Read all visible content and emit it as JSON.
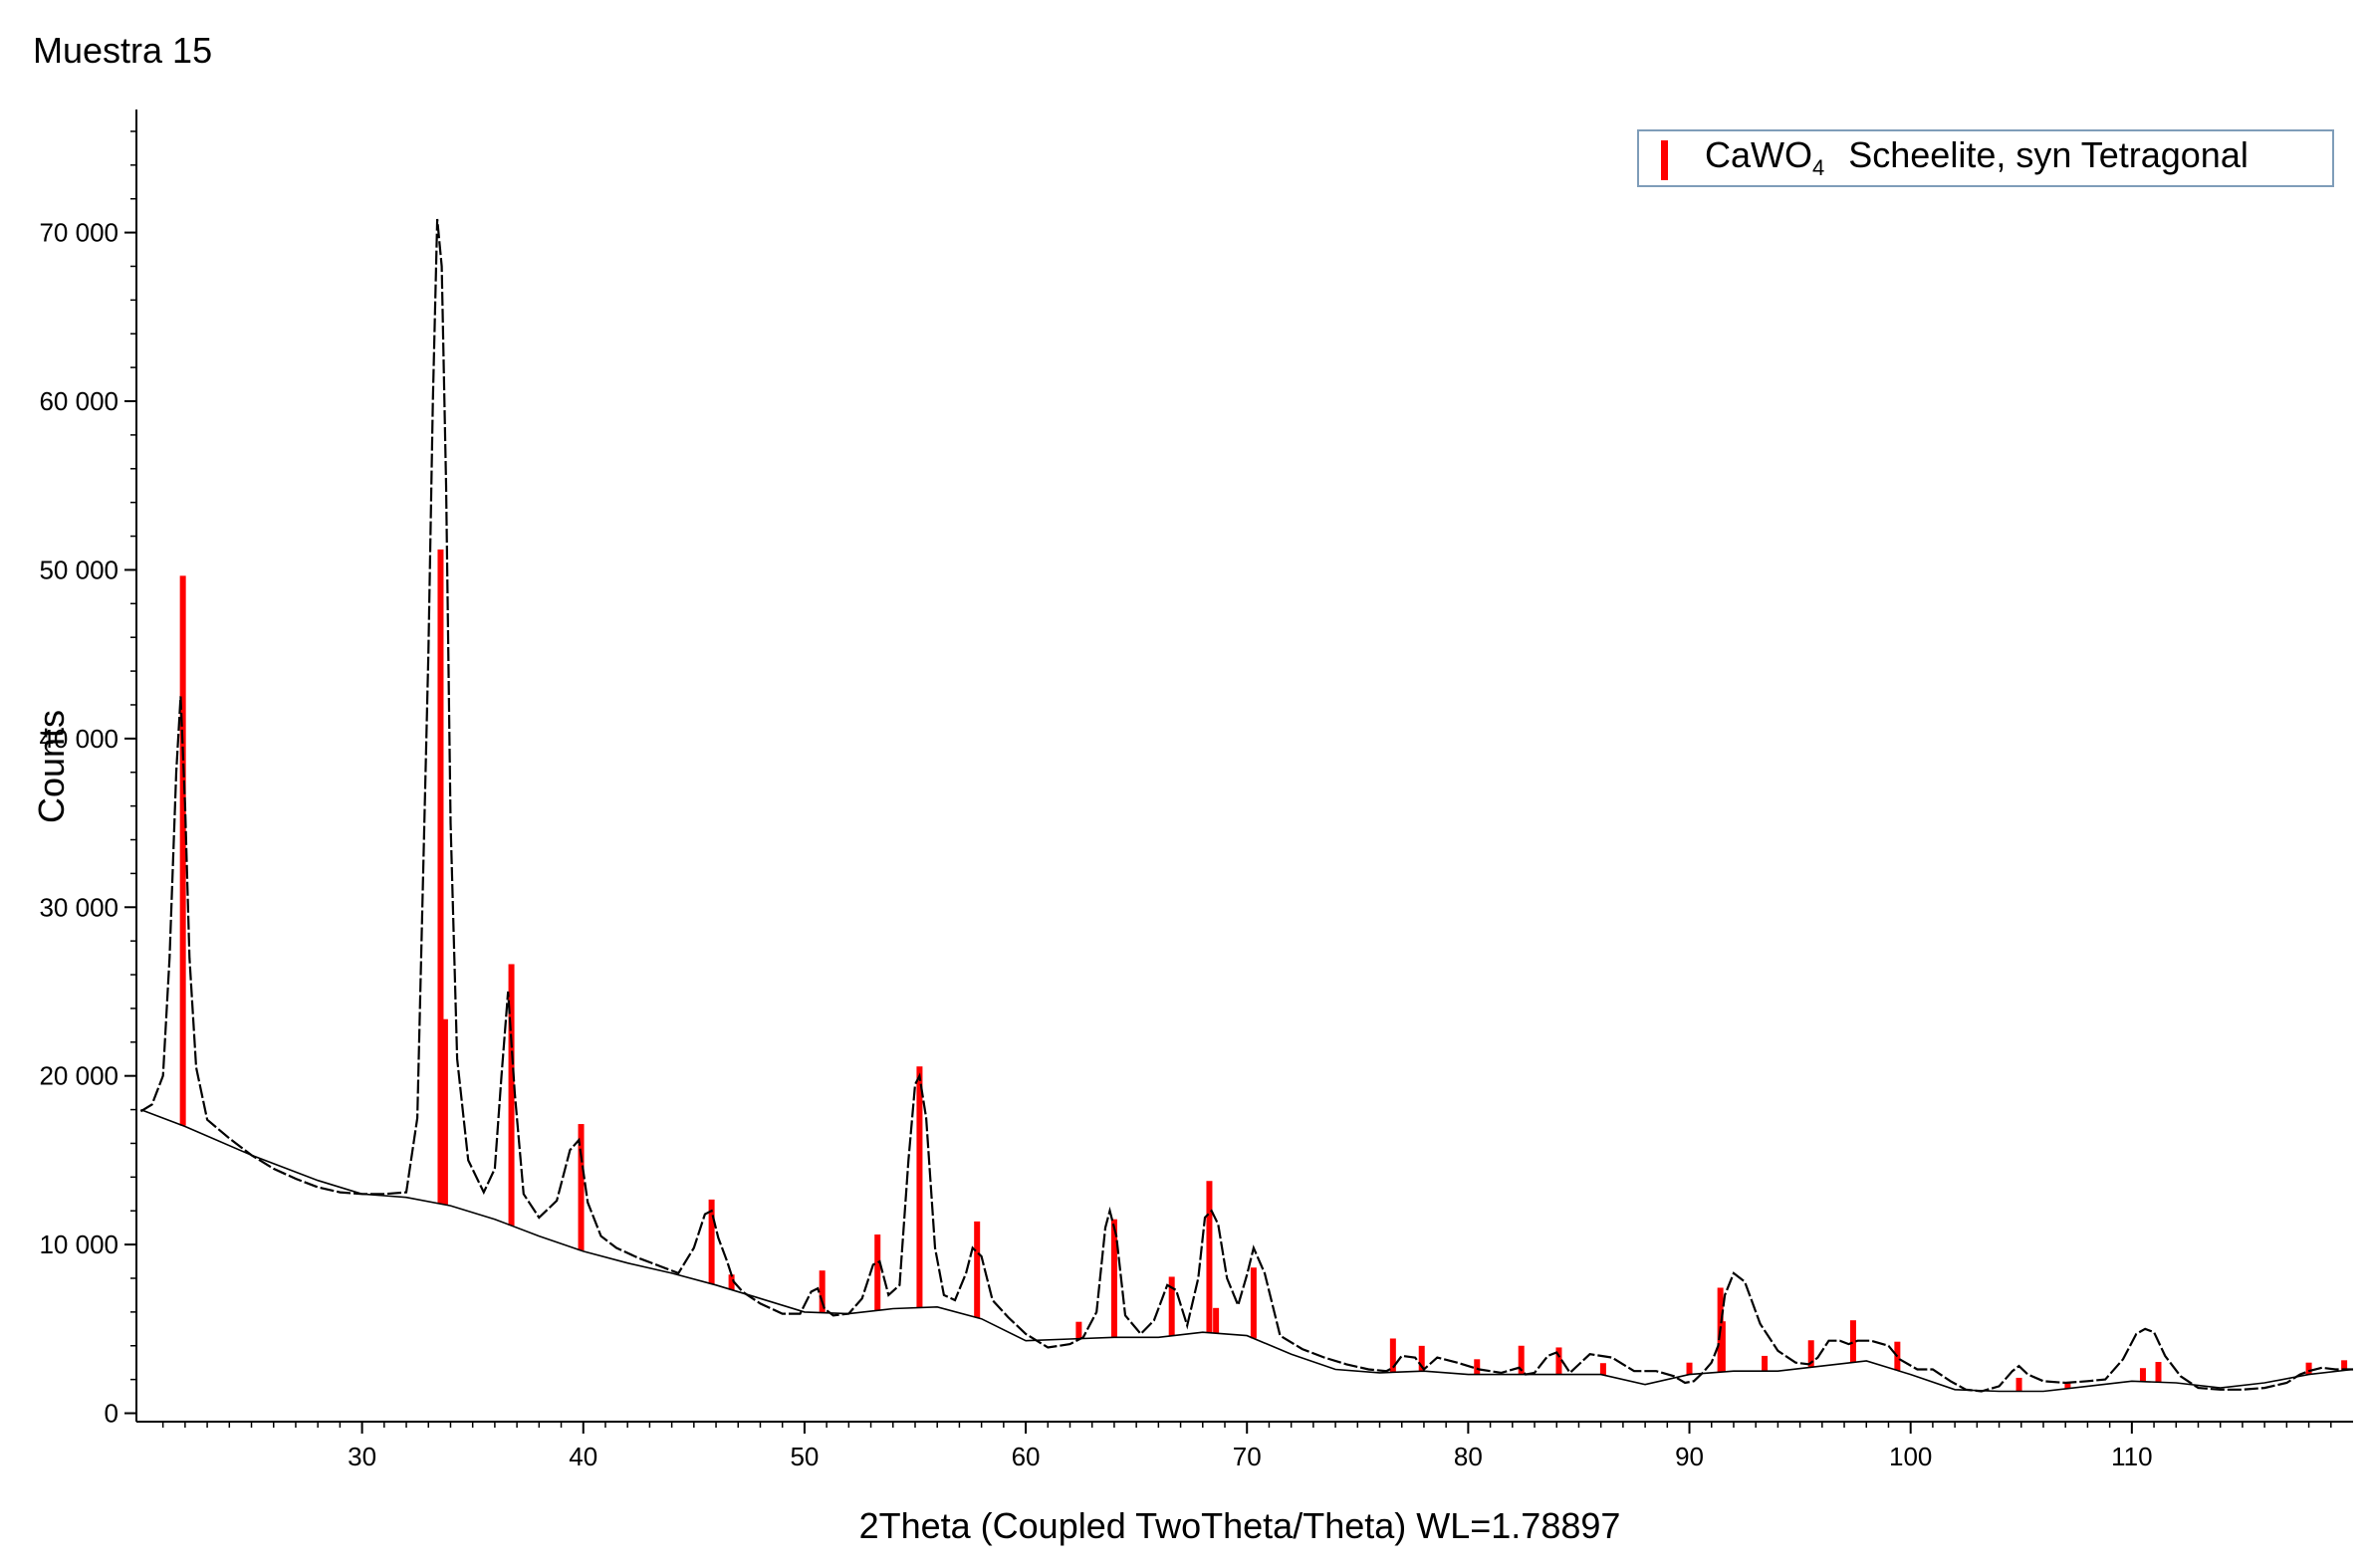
{
  "chart_data": {
    "type": "line",
    "title": "Muestra 15",
    "xlabel": "2Theta (Coupled TwoTheta/Theta) WL=1.78897",
    "ylabel": "Counts",
    "xlim": [
      19.8,
      120
    ],
    "ylim": [
      -500,
      77000
    ],
    "grid": false,
    "legend_position": "top-right",
    "x_ticks": [
      30,
      40,
      50,
      60,
      70,
      80,
      90,
      100,
      110
    ],
    "x_tick_labels": [
      "30",
      "40",
      "50",
      "60",
      "70",
      "80",
      "90",
      "100",
      "110"
    ],
    "y_ticks": [
      0,
      10000,
      20000,
      30000,
      40000,
      50000,
      60000,
      70000
    ],
    "y_tick_labels": [
      "0",
      "10 000",
      "20 000",
      "30 000",
      "40 000",
      "50 000",
      "60 000",
      "70 000"
    ],
    "colors": {
      "pattern": "#000000",
      "background": "#000000",
      "reference": "#ff0000"
    },
    "series": [
      {
        "name": "",
        "role": "measured pattern",
        "x": [
          20,
          20.5,
          21,
          21.3,
          21.6,
          21.8,
          22,
          22.2,
          22.5,
          23,
          24,
          25,
          26,
          27,
          28,
          29,
          30,
          31,
          32,
          32.5,
          33,
          33.2,
          33.4,
          33.6,
          33.8,
          34,
          34.3,
          34.8,
          35.5,
          36,
          36.3,
          36.6,
          36.9,
          37.3,
          38,
          38.8,
          39.4,
          39.8,
          40.2,
          40.8,
          41.5,
          42.5,
          43.5,
          44.3,
          45,
          45.5,
          45.8,
          46.1,
          46.5,
          46.8,
          47.2,
          48,
          49,
          49.8,
          50.3,
          50.6,
          50.9,
          51.3,
          52,
          52.6,
          53.1,
          53.4,
          53.8,
          54.3,
          54.7,
          55,
          55.2,
          55.5,
          55.9,
          56.3,
          56.8,
          57.3,
          57.6,
          58,
          58.5,
          59.2,
          60,
          61,
          62,
          62.6,
          63.2,
          63.6,
          63.8,
          64.1,
          64.5,
          65.2,
          65.8,
          66.4,
          66.8,
          67.3,
          67.8,
          68.1,
          68.4,
          68.7,
          69.1,
          69.6,
          70,
          70.3,
          70.8,
          71.5,
          72.5,
          73.5,
          74.5,
          75.5,
          76.3,
          76.6,
          77,
          77.6,
          78,
          78.6,
          79.5,
          80.5,
          81.5,
          82.3,
          82.6,
          83,
          83.6,
          84,
          84.6,
          85.5,
          86.5,
          87.5,
          88.5,
          89.3,
          89.8,
          90.2,
          90.6,
          91,
          91.3,
          91.6,
          92,
          92.5,
          93.2,
          94,
          94.8,
          95.4,
          95.8,
          96.3,
          96.8,
          97.2,
          97.6,
          98.2,
          99,
          99.5,
          100.3,
          101,
          101.8,
          102.5,
          103.2,
          104,
          104.6,
          104.9,
          105.3,
          106,
          107,
          108,
          108.8,
          109.6,
          110.2,
          110.6,
          111,
          111.5,
          112.2,
          113,
          114,
          115,
          116,
          117,
          117.6,
          118,
          118.6,
          119.2,
          120
        ],
        "y": [
          17900,
          18300,
          20000,
          27000,
          38000,
          42500,
          36000,
          27000,
          20500,
          17400,
          16300,
          15300,
          14500,
          13900,
          13400,
          13100,
          13000,
          13000,
          13100,
          17500,
          45000,
          60000,
          70800,
          68000,
          55000,
          35000,
          21000,
          15000,
          13100,
          14500,
          20000,
          25000,
          19000,
          13000,
          11600,
          12600,
          15600,
          16200,
          12500,
          10500,
          9800,
          9200,
          8700,
          8300,
          9800,
          11800,
          12000,
          10400,
          9000,
          7800,
          7200,
          6500,
          5900,
          5900,
          7200,
          7400,
          6200,
          5800,
          5900,
          6800,
          8800,
          9000,
          7000,
          7600,
          15000,
          19500,
          20000,
          17500,
          9800,
          7000,
          6700,
          8300,
          9800,
          9300,
          6700,
          5700,
          4700,
          3900,
          4100,
          4500,
          6000,
          11000,
          12000,
          10500,
          5800,
          4700,
          5500,
          7600,
          7300,
          5200,
          8000,
          11600,
          12000,
          11200,
          8000,
          6400,
          8200,
          9800,
          8300,
          4600,
          3800,
          3300,
          2900,
          2600,
          2500,
          2700,
          3400,
          3300,
          2600,
          3300,
          3000,
          2600,
          2400,
          2700,
          2300,
          2400,
          3400,
          3600,
          2400,
          3500,
          3300,
          2500,
          2500,
          2200,
          1800,
          1900,
          2400,
          3000,
          4000,
          7000,
          8300,
          7800,
          5300,
          3700,
          3000,
          2900,
          3300,
          4300,
          4300,
          4100,
          4300,
          4300,
          4000,
          3200,
          2600,
          2600,
          1900,
          1400,
          1300,
          1600,
          2500,
          2800,
          2300,
          1900,
          1800,
          1900,
          2000,
          3200,
          4700,
          5000,
          4800,
          3400,
          2200,
          1500,
          1400,
          1400,
          1500,
          1800,
          2300,
          2500,
          2700,
          2600,
          2600
        ]
      },
      {
        "name": "",
        "role": "background",
        "x": [
          20,
          22,
          25,
          28,
          30,
          32,
          34,
          36,
          38,
          40,
          42,
          44,
          46,
          48,
          50,
          52,
          54,
          56,
          58,
          60,
          62,
          64,
          66,
          68,
          70,
          72,
          74,
          76,
          78,
          80,
          82,
          84,
          86,
          88,
          90,
          92,
          94,
          96,
          98,
          100,
          102,
          104,
          106,
          108,
          110,
          112,
          114,
          116,
          118,
          120
        ],
        "y": [
          18000,
          17000,
          15300,
          13800,
          13000,
          12800,
          12300,
          11500,
          10500,
          9600,
          8900,
          8300,
          7600,
          6800,
          6000,
          5900,
          6200,
          6300,
          5600,
          4300,
          4400,
          4500,
          4500,
          4800,
          4600,
          3500,
          2600,
          2400,
          2500,
          2300,
          2300,
          2300,
          2300,
          1700,
          2300,
          2500,
          2500,
          2800,
          3100,
          2300,
          1400,
          1300,
          1300,
          1600,
          1900,
          1800,
          1500,
          1800,
          2300,
          2600
        ]
      }
    ],
    "reference_peaks": {
      "name_formula": "CaWO",
      "name_formula_subscript": "4",
      "name_text": "Scheelite, syn Tetragonal",
      "x": [
        21.9,
        33.55,
        33.75,
        36.75,
        39.9,
        45.8,
        46.7,
        50.8,
        53.3,
        55.2,
        57.8,
        62.4,
        64.0,
        66.6,
        68.3,
        68.6,
        70.3,
        76.6,
        77.9,
        80.4,
        82.4,
        84.1,
        86.1,
        90.0,
        91.4,
        91.5,
        93.4,
        95.5,
        97.4,
        99.4,
        104.9,
        107.1,
        110.5,
        111.2,
        118.0,
        119.6
      ],
      "height": [
        32600,
        38800,
        11000,
        15500,
        7500,
        5000,
        900,
        2500,
        4500,
        14300,
        5700,
        1000,
        7000,
        3500,
        9000,
        1500,
        4200,
        2000,
        1500,
        900,
        1700,
        1600,
        700,
        700,
        5000,
        3000,
        900,
        1600,
        2500,
        1700,
        800,
        400,
        800,
        1200,
        700,
        600
      ]
    }
  }
}
